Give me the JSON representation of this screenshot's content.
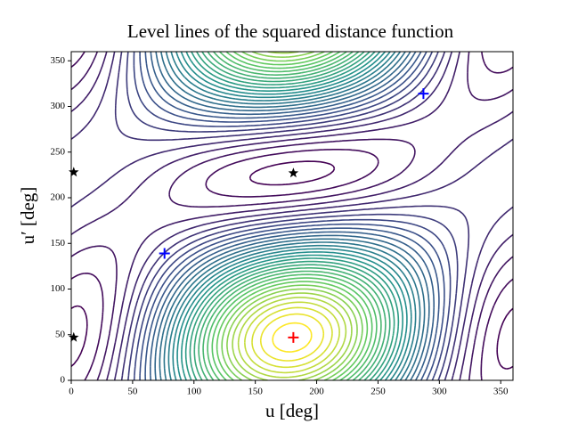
{
  "chart_data": {
    "type": "contour",
    "title": "Level lines of the squared distance function",
    "x_label": "u [deg]",
    "y_label": "u′ [deg]",
    "xlim": [
      0,
      360
    ],
    "ylim": [
      0,
      360
    ],
    "xticks": [
      0,
      50,
      100,
      150,
      200,
      250,
      300,
      350
    ],
    "yticks": [
      0,
      50,
      100,
      150,
      200,
      250,
      300,
      350
    ],
    "series": [
      {
        "marker": "star",
        "color": "#000000",
        "x": [
          2,
          2,
          181
        ],
        "y": [
          47,
          228,
          227
        ]
      },
      {
        "marker": "plus",
        "color": "#0000ff",
        "x": [
          76,
          287
        ],
        "y": [
          139,
          314
        ]
      },
      {
        "marker": "plus",
        "color": "#ff0000",
        "x": [
          181
        ],
        "y": [
          47
        ]
      }
    ]
  }
}
